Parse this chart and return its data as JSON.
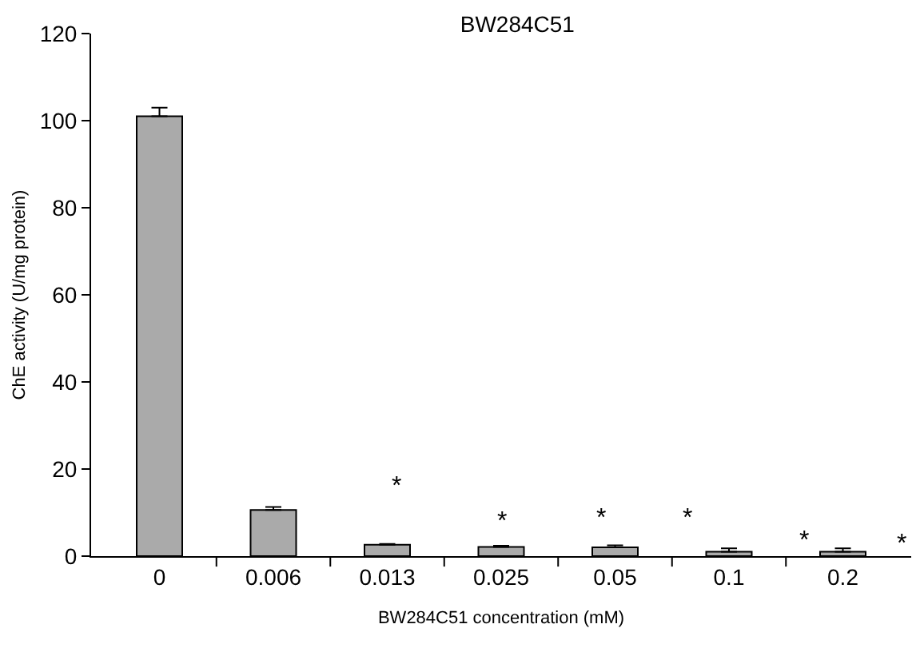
{
  "chart_data": {
    "type": "bar",
    "title": "BW284C51",
    "xlabel": "BW284C51 concentration (mM)",
    "ylabel": "ChE activity (U/mg protein)",
    "categories": [
      "0",
      "0.006",
      "0.013",
      "0.025",
      "0.05",
      "0.1",
      "0.2"
    ],
    "values": [
      101,
      10.6,
      2.6,
      2.1,
      2.0,
      1.0,
      1.0
    ],
    "errors": [
      [
        101,
        103
      ],
      [
        10.6,
        11.3
      ],
      [
        2.6,
        2.8
      ],
      [
        2.1,
        2.4
      ],
      [
        2.0,
        2.5
      ],
      [
        1.0,
        1.8
      ],
      [
        1.0,
        1.8
      ]
    ],
    "color": "#aaaaaa",
    "ylim": [
      0,
      120
    ],
    "yticks": [
      0,
      20,
      40,
      60,
      80,
      100,
      120
    ],
    "annotations": [
      "*",
      "*",
      "*",
      "*",
      "*",
      "*"
    ]
  }
}
